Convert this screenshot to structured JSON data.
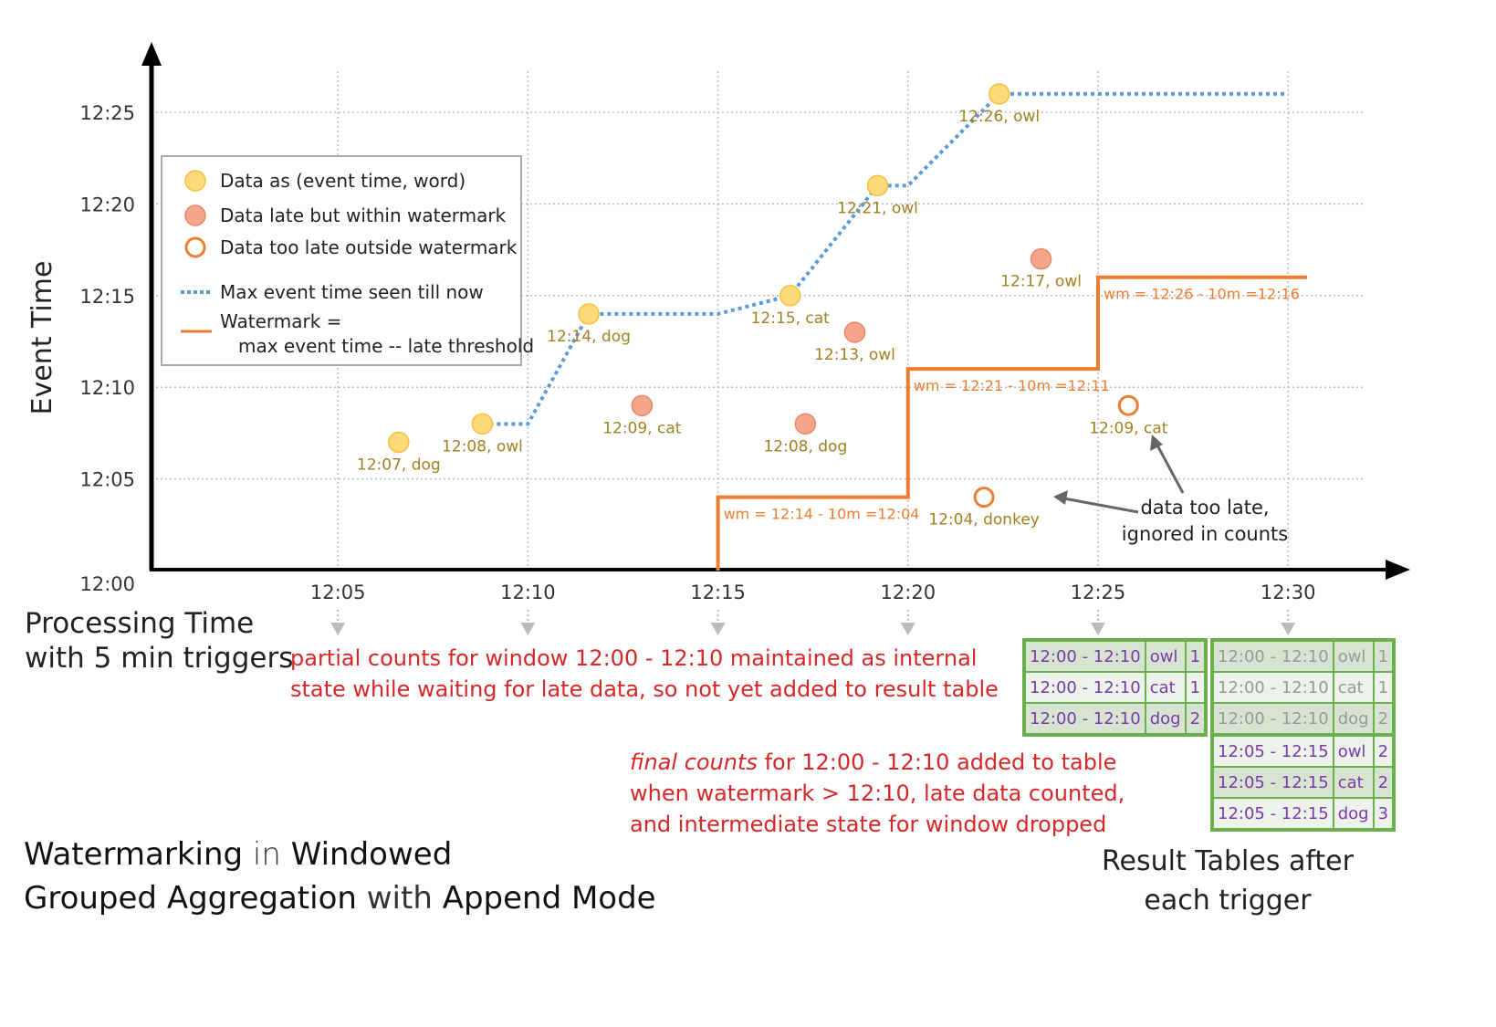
{
  "title": {
    "parts": [
      {
        "text": "Watermarking",
        "bold": true
      },
      {
        "text": " in ",
        "bold": false
      },
      {
        "text": "Windowed",
        "bold": true
      },
      {
        "text": "Grouped Aggregation",
        "bold": true
      },
      {
        "text": " with ",
        "bold": false
      },
      {
        "text": "Append Mode",
        "bold": true
      }
    ]
  },
  "chart_data": {
    "type": "scatter",
    "ylabel": "Event Time",
    "xlabel_lines": [
      "Processing Time",
      "with 5 min triggers"
    ],
    "x_ticks": [
      "12:05",
      "12:10",
      "12:15",
      "12:20",
      "12:25",
      "12:30"
    ],
    "y_ticks": [
      "12:00",
      "12:05",
      "12:10",
      "12:15",
      "12:20",
      "12:25"
    ],
    "grid": true,
    "legend": {
      "placement": "top-left",
      "items": [
        {
          "label": "Data as (event time, word)",
          "kind": "on-time"
        },
        {
          "label": "Data late but within watermark",
          "kind": "late"
        },
        {
          "label": "Data too late outside watermark",
          "kind": "too-late"
        },
        {
          "label": "Max event time seen till now",
          "kind": "max-line"
        },
        {
          "label": "Watermark =",
          "label2": "max event time -- late threshold",
          "kind": "watermark-line"
        }
      ]
    },
    "colors": {
      "on_time": "#ffd97a",
      "late": "#f4a58a",
      "too_late": "#ed7d31",
      "max_line": "#5b9bd5",
      "watermark": "#ed7d31",
      "label": "#a08020"
    },
    "points": [
      {
        "proc": 6.6,
        "event": 7,
        "label": "12:07, dog",
        "kind": "on-time"
      },
      {
        "proc": 8.8,
        "event": 8,
        "label": "12:08, owl",
        "kind": "on-time"
      },
      {
        "proc": 11.6,
        "event": 14,
        "label": "12:14, dog",
        "kind": "on-time"
      },
      {
        "proc": 13.0,
        "event": 9,
        "label": "12:09, cat",
        "kind": "late"
      },
      {
        "proc": 16.9,
        "event": 15,
        "label": "12:15, cat",
        "kind": "on-time"
      },
      {
        "proc": 17.3,
        "event": 8,
        "label": "12:08, dog",
        "kind": "late"
      },
      {
        "proc": 18.6,
        "event": 13,
        "label": "12:13, owl",
        "kind": "late"
      },
      {
        "proc": 19.2,
        "event": 21,
        "label": "12:21, owl",
        "kind": "on-time"
      },
      {
        "proc": 22.0,
        "event": 4,
        "label": "12:04, donkey",
        "kind": "too-late"
      },
      {
        "proc": 22.4,
        "event": 26,
        "label": "12:26, owl",
        "kind": "on-time"
      },
      {
        "proc": 23.5,
        "event": 17,
        "label": "12:17, owl",
        "kind": "late"
      },
      {
        "proc": 25.8,
        "event": 9,
        "label": "12:09, cat",
        "kind": "too-late"
      }
    ],
    "max_event_line": [
      [
        8.8,
        8
      ],
      [
        10,
        8
      ],
      [
        11.6,
        14
      ],
      [
        15,
        14
      ],
      [
        16.9,
        15
      ],
      [
        19.2,
        21
      ],
      [
        20,
        21
      ],
      [
        22.4,
        26
      ],
      [
        30,
        26
      ]
    ],
    "watermark_line": [
      [
        15,
        0
      ],
      [
        15,
        4
      ],
      [
        20,
        4
      ],
      [
        20,
        11
      ],
      [
        25,
        11
      ],
      [
        25,
        16
      ],
      [
        30.5,
        16
      ]
    ],
    "watermark_labels": [
      {
        "text": "wm = 12:14 - 10m =12:04",
        "proc": 15,
        "event": 4
      },
      {
        "text": "wm = 12:21 - 10m =12:11",
        "proc": 20,
        "event": 11
      },
      {
        "text": "wm = 12:26 - 10m =12:16",
        "proc": 25,
        "event": 16
      }
    ]
  },
  "annotations": {
    "too_late_note": [
      "data too late,",
      "ignored in counts"
    ],
    "partial_note": [
      "partial counts for window 12:00 - 12:10 maintained as internal",
      "state while waiting for late data, so not yet added  to result table"
    ],
    "final_note_emph": "final counts",
    "final_note": [
      " for 12:00 - 12:10 added to table",
      "when watermark > 12:10, late data counted,",
      "and intermediate state for window dropped"
    ],
    "result_caption": [
      "Result Tables after",
      "each trigger"
    ]
  },
  "result_tables": [
    {
      "trigger": "12:25",
      "rows": [
        {
          "window": "12:00 - 12:10",
          "word": "owl",
          "count": "1"
        },
        {
          "window": "12:00 - 12:10",
          "word": "cat",
          "count": "1"
        },
        {
          "window": "12:00 - 12:10",
          "word": "dog",
          "count": "2"
        }
      ]
    },
    {
      "trigger": "12:30",
      "rows": [
        {
          "window": "12:00 - 12:10",
          "word": "owl",
          "count": "1",
          "old": true
        },
        {
          "window": "12:00 - 12:10",
          "word": "cat",
          "count": "1",
          "old": true
        },
        {
          "window": "12:00 - 12:10",
          "word": "dog",
          "count": "2",
          "old": true
        },
        {
          "window": "12:05 - 12:15",
          "word": "owl",
          "count": "2"
        },
        {
          "window": "12:05 - 12:15",
          "word": "cat",
          "count": "2"
        },
        {
          "window": "12:05 - 12:15",
          "word": "dog",
          "count": "3"
        }
      ]
    }
  ]
}
